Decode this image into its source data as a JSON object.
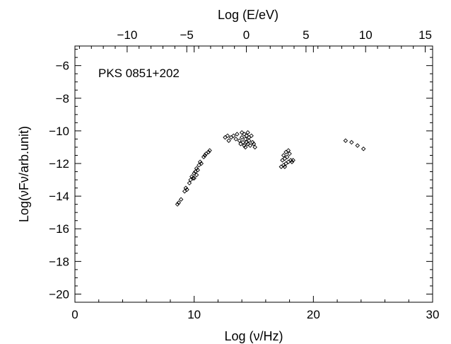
{
  "chart_data": {
    "type": "scatter",
    "title": "",
    "annotation": "PKS 0851+202",
    "xlabel": "Log (ν/Hz)",
    "ylabel": "Log(νFν/arb.unit)",
    "top_xlabel": "Log (E/eV)",
    "xlim": [
      0,
      30
    ],
    "ylim": [
      -20.5,
      -4.8
    ],
    "top_xlim": [
      -14.38,
      15.62
    ],
    "x_ticks": [
      0,
      10,
      20,
      30
    ],
    "y_ticks": [
      -20,
      -18,
      -16,
      -14,
      -12,
      -10,
      -8,
      -6
    ],
    "top_x_ticks": [
      -10,
      -5,
      0,
      5,
      10,
      15
    ],
    "marker": "open-diamond",
    "grid": false,
    "points": [
      {
        "x": 8.6,
        "y": -14.5
      },
      {
        "x": 8.7,
        "y": -14.4
      },
      {
        "x": 8.9,
        "y": -14.2
      },
      {
        "x": 9.2,
        "y": -13.7
      },
      {
        "x": 9.3,
        "y": -13.5
      },
      {
        "x": 9.4,
        "y": -13.6
      },
      {
        "x": 9.6,
        "y": -13.2
      },
      {
        "x": 9.7,
        "y": -13.0
      },
      {
        "x": 9.8,
        "y": -12.8
      },
      {
        "x": 9.9,
        "y": -12.9
      },
      {
        "x": 10.0,
        "y": -12.6
      },
      {
        "x": 10.1,
        "y": -12.5
      },
      {
        "x": 10.2,
        "y": -12.3
      },
      {
        "x": 10.3,
        "y": -12.4
      },
      {
        "x": 10.4,
        "y": -12.1
      },
      {
        "x": 10.5,
        "y": -11.9
      },
      {
        "x": 10.6,
        "y": -12.0
      },
      {
        "x": 10.8,
        "y": -11.6
      },
      {
        "x": 10.9,
        "y": -11.5
      },
      {
        "x": 11.0,
        "y": -11.4
      },
      {
        "x": 11.2,
        "y": -11.3
      },
      {
        "x": 11.3,
        "y": -11.2
      },
      {
        "x": 10.0,
        "y": -12.9
      },
      {
        "x": 10.2,
        "y": -12.7
      },
      {
        "x": 12.6,
        "y": -10.4
      },
      {
        "x": 12.8,
        "y": -10.3
      },
      {
        "x": 12.9,
        "y": -10.6
      },
      {
        "x": 13.1,
        "y": -10.4
      },
      {
        "x": 13.3,
        "y": -10.3
      },
      {
        "x": 13.5,
        "y": -10.5
      },
      {
        "x": 13.6,
        "y": -10.2
      },
      {
        "x": 13.8,
        "y": -10.6
      },
      {
        "x": 13.9,
        "y": -10.8
      },
      {
        "x": 14.0,
        "y": -10.4
      },
      {
        "x": 14.1,
        "y": -10.7
      },
      {
        "x": 14.2,
        "y": -10.2
      },
      {
        "x": 14.2,
        "y": -10.9
      },
      {
        "x": 14.3,
        "y": -10.5
      },
      {
        "x": 14.4,
        "y": -10.7
      },
      {
        "x": 14.4,
        "y": -10.3
      },
      {
        "x": 14.5,
        "y": -10.8
      },
      {
        "x": 14.6,
        "y": -10.4
      },
      {
        "x": 14.6,
        "y": -10.6
      },
      {
        "x": 14.7,
        "y": -10.9
      },
      {
        "x": 14.8,
        "y": -10.3
      },
      {
        "x": 14.9,
        "y": -10.7
      },
      {
        "x": 15.0,
        "y": -10.8
      },
      {
        "x": 15.1,
        "y": -11.0
      },
      {
        "x": 14.0,
        "y": -10.1
      },
      {
        "x": 14.5,
        "y": -10.1
      },
      {
        "x": 14.3,
        "y": -11.0
      },
      {
        "x": 17.3,
        "y": -12.2
      },
      {
        "x": 17.4,
        "y": -11.8
      },
      {
        "x": 17.5,
        "y": -12.1
      },
      {
        "x": 17.6,
        "y": -11.7
      },
      {
        "x": 17.7,
        "y": -12.0
      },
      {
        "x": 17.8,
        "y": -11.6
      },
      {
        "x": 17.9,
        "y": -11.9
      },
      {
        "x": 18.0,
        "y": -11.4
      },
      {
        "x": 18.1,
        "y": -11.8
      },
      {
        "x": 18.2,
        "y": -11.9
      },
      {
        "x": 17.5,
        "y": -11.5
      },
      {
        "x": 17.7,
        "y": -11.3
      },
      {
        "x": 17.9,
        "y": -11.2
      },
      {
        "x": 17.6,
        "y": -12.2
      },
      {
        "x": 18.3,
        "y": -11.8
      },
      {
        "x": 22.7,
        "y": -10.6
      },
      {
        "x": 23.2,
        "y": -10.7
      },
      {
        "x": 23.7,
        "y": -10.9
      },
      {
        "x": 24.2,
        "y": -11.1
      }
    ]
  }
}
